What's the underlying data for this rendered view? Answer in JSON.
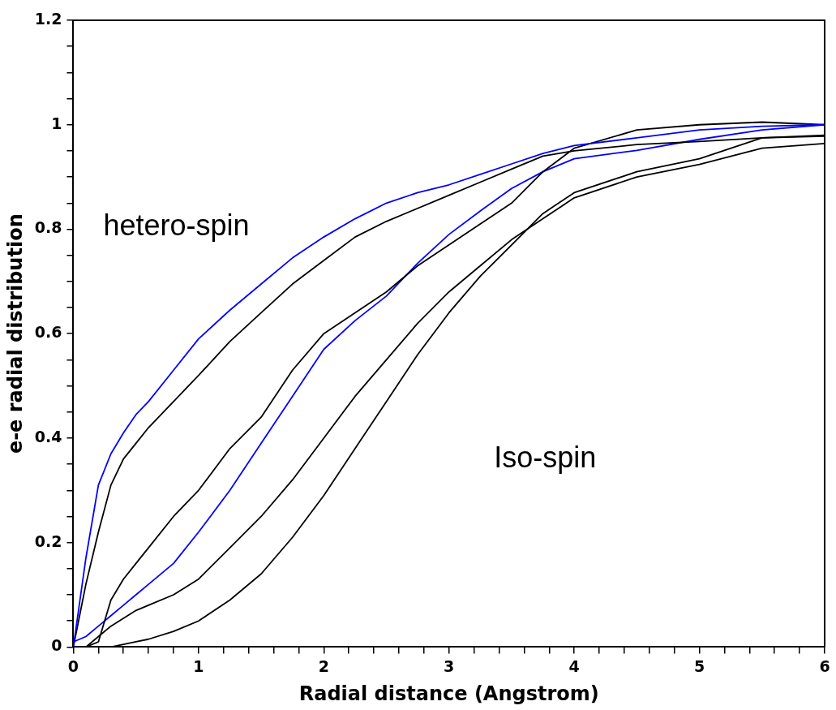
{
  "chart_data": {
    "type": "line",
    "xlabel": "Radial distance (Angstrom)",
    "ylabel": "e-e radial distribution",
    "annotations": [
      "hetero-spin",
      "Iso-spin"
    ],
    "x": [
      0,
      0.1,
      0.2,
      0.3,
      0.4,
      0.5,
      0.6,
      0.8,
      1,
      1.25,
      1.5,
      1.75,
      2,
      2.25,
      2.5,
      2.75,
      3,
      3.25,
      3.5,
      3.75,
      4,
      4.5,
      5,
      5.5,
      6
    ],
    "series": [
      {
        "color": "#0000ff",
        "values": [
          0,
          0.17,
          0.31,
          0.37,
          0.41,
          0.445,
          0.47,
          0.53,
          0.59,
          0.645,
          0.695,
          0.745,
          0.785,
          0.82,
          0.85,
          0.87,
          0.885,
          0.905,
          0.925,
          0.945,
          0.96,
          0.975,
          0.99,
          0.997,
          1.0
        ]
      },
      {
        "color": "#000000",
        "values": [
          0,
          0.12,
          0.22,
          0.31,
          0.36,
          0.39,
          0.42,
          0.47,
          0.52,
          0.585,
          0.64,
          0.695,
          0.74,
          0.785,
          0.815,
          0.84,
          0.865,
          0.89,
          0.915,
          0.94,
          0.95,
          0.962,
          0.968,
          0.975,
          0.98
        ]
      },
      {
        "color": "#000000",
        "x": [
          0.1,
          0.2,
          0.3,
          0.4,
          0.5,
          0.6,
          0.8,
          1,
          1.25,
          1.5,
          1.75,
          2,
          2.25,
          2.5,
          2.75,
          3,
          3.25,
          3.5,
          3.75,
          4,
          4.5,
          5,
          5.5,
          6
        ],
        "values": [
          0,
          0.01,
          0.09,
          0.13,
          0.16,
          0.19,
          0.25,
          0.3,
          0.38,
          0.44,
          0.53,
          0.6,
          0.64,
          0.68,
          0.73,
          0.77,
          0.81,
          0.85,
          0.91,
          0.955,
          0.99,
          1.0,
          1.005,
          1.0
        ]
      },
      {
        "color": "#0000ff",
        "values": [
          0.01,
          0.02,
          0.04,
          0.06,
          0.08,
          0.1,
          0.12,
          0.16,
          0.22,
          0.3,
          0.39,
          0.48,
          0.57,
          0.625,
          0.672,
          0.735,
          0.79,
          0.835,
          0.878,
          0.91,
          0.935,
          0.951,
          0.972,
          0.99,
          1.0
        ]
      },
      {
        "color": "#000000",
        "x": [
          0.1,
          0.2,
          0.3,
          0.4,
          0.5,
          0.6,
          0.8,
          1,
          1.25,
          1.5,
          1.75,
          2,
          2.25,
          2.5,
          2.75,
          3,
          3.25,
          3.5,
          3.75,
          4,
          4.5,
          5,
          5.5,
          6
        ],
        "values": [
          0,
          0.02,
          0.04,
          0.055,
          0.07,
          0.08,
          0.1,
          0.13,
          0.19,
          0.25,
          0.32,
          0.4,
          0.48,
          0.55,
          0.62,
          0.68,
          0.73,
          0.78,
          0.82,
          0.86,
          0.9,
          0.924,
          0.955,
          0.964
        ]
      },
      {
        "color": "#000000",
        "x": [
          0.2,
          0.3,
          0.4,
          0.5,
          0.6,
          0.8,
          1,
          1.25,
          1.5,
          1.75,
          2,
          2.25,
          2.5,
          2.75,
          3,
          3.25,
          3.5,
          3.75,
          4,
          4.5,
          5,
          5.5,
          6
        ],
        "values": [
          0,
          0,
          0.005,
          0.01,
          0.015,
          0.03,
          0.05,
          0.09,
          0.14,
          0.21,
          0.29,
          0.38,
          0.47,
          0.56,
          0.64,
          0.71,
          0.77,
          0.83,
          0.87,
          0.91,
          0.935,
          0.975,
          0.978
        ]
      }
    ],
    "xlim": [
      0,
      6
    ],
    "ylim": [
      0,
      1.2
    ],
    "xticks": [
      0,
      {
        "value": 0.2,
        "label": null
      },
      {
        "value": 0.4,
        "label": null
      },
      {
        "value": 0.6,
        "label": null
      },
      {
        "value": 0.8,
        "label": null
      },
      1,
      {
        "value": 1.2,
        "label": null
      },
      {
        "value": 1.4,
        "label": null
      },
      {
        "value": 1.6,
        "label": null
      },
      {
        "value": 1.8,
        "label": null
      },
      2,
      {
        "value": 2.2,
        "label": null
      },
      {
        "value": 2.4,
        "label": null
      },
      {
        "value": 2.6,
        "label": null
      },
      {
        "value": 2.8,
        "label": null
      },
      3,
      {
        "value": 3.2,
        "label": null
      },
      {
        "value": 3.4,
        "label": null
      },
      {
        "value": 3.6,
        "label": null
      },
      {
        "value": 3.8,
        "label": null
      },
      4,
      {
        "value": 4.2,
        "label": null
      },
      {
        "value": 4.4,
        "label": null
      },
      {
        "value": 4.6,
        "label": null
      },
      {
        "value": 4.8,
        "label": null
      },
      5,
      {
        "value": 5.2,
        "label": null
      },
      {
        "value": 5.4,
        "label": null
      },
      {
        "value": 5.6,
        "label": null
      },
      {
        "value": 5.8,
        "label": null
      },
      6
    ],
    "yticks": [
      0,
      {
        "value": 0.05,
        "label": null
      },
      {
        "value": 0.1,
        "label": null
      },
      {
        "value": 0.15,
        "label": null
      },
      0.2,
      {
        "value": 0.25,
        "label": null
      },
      {
        "value": 0.3,
        "label": null
      },
      {
        "value": 0.35,
        "label": null
      },
      0.4,
      {
        "value": 0.45,
        "label": null
      },
      {
        "value": 0.5,
        "label": null
      },
      {
        "value": 0.55,
        "label": null
      },
      0.6,
      {
        "value": 0.65,
        "label": null
      },
      {
        "value": 0.7,
        "label": null
      },
      {
        "value": 0.75,
        "label": null
      },
      0.8,
      {
        "value": 0.85,
        "label": null
      },
      {
        "value": 0.9,
        "label": null
      },
      {
        "value": 0.95,
        "label": null
      },
      1,
      {
        "value": 1.05,
        "label": null
      },
      {
        "value": 1.1,
        "label": null
      },
      {
        "value": 1.15,
        "label": null
      },
      1.2
    ],
    "grid": false,
    "legend": false,
    "marker": "none",
    "line_style": "solid"
  }
}
